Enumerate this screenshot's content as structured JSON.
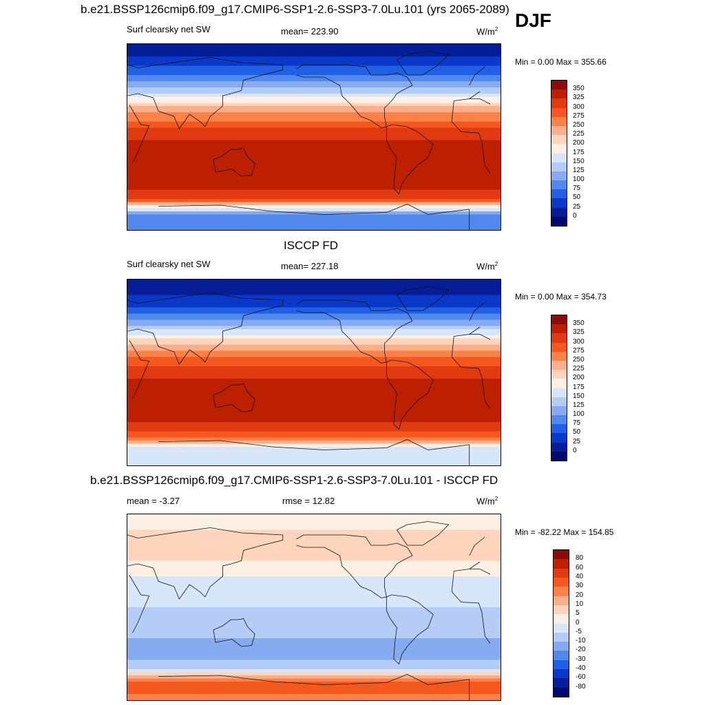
{
  "header": {
    "title": "b.e21.BSSP126cmip6.f09_g17.CMIP6-SSP1-2.6-SSP3-7.0Lu.101 (yrs 2065-2089)",
    "season": "DJF"
  },
  "panels": [
    {
      "variable": "Surf clearsky net SW",
      "stat": "mean= 223.90",
      "units": "W/m",
      "units_exp": "2",
      "minmax": "Min =   0.00 Max = 355.66"
    },
    {
      "title": "ISCCP FD",
      "variable": "Surf clearsky net SW",
      "stat": "mean= 227.18",
      "units": "W/m",
      "units_exp": "2",
      "minmax": "Min =   0.00 Max = 354.73"
    },
    {
      "title": "b.e21.BSSP126cmip6.f09_g17.CMIP6-SSP1-2.6-SSP3-7.0Lu.101 - ISCCP FD",
      "stat": "mean =  -3.27",
      "stat2": "rmse =  12.82",
      "units": "W/m",
      "units_exp": "2",
      "minmax": "Min = -82.22 Max = 154.85"
    }
  ],
  "chart_data": [
    {
      "type": "heatmap",
      "title": "b.e21.BSSP126cmip6.f09_g17.CMIP6-SSP1-2.6-SSP3-7.0Lu.101 (yrs 2065-2089)",
      "subtitle": "Surf clearsky net SW",
      "units": "W/m2",
      "mean": 223.9,
      "min": 0.0,
      "max": 355.66,
      "colorbar_levels": [
        "350",
        "325",
        "300",
        "275",
        "250",
        "225",
        "200",
        "175",
        "150",
        "125",
        "100",
        "75",
        "50",
        "25",
        "0"
      ],
      "colorbar_colors": [
        "#8c0c0c",
        "#bd2000",
        "#e03a10",
        "#f5581c",
        "#fa8248",
        "#fbae8a",
        "#fdd5bd",
        "#fdf0e4",
        "#d8e6fa",
        "#b5ccf6",
        "#86abf0",
        "#5088ec",
        "#1f60e4",
        "#0a38c8",
        "#051e98",
        "#000a6e"
      ],
      "zonal_profile_lat_from_north": [
        90,
        75,
        60,
        45,
        30,
        15,
        0,
        -15,
        -30,
        -45,
        -60,
        -75,
        -90
      ],
      "zonal_profile_values": [
        5,
        30,
        70,
        140,
        220,
        280,
        320,
        345,
        350,
        345,
        300,
        95,
        95
      ]
    },
    {
      "type": "heatmap",
      "title": "ISCCP FD",
      "subtitle": "Surf clearsky net SW",
      "units": "W/m2",
      "mean": 227.18,
      "min": 0.0,
      "max": 354.73,
      "colorbar_levels": [
        "350",
        "325",
        "300",
        "275",
        "250",
        "225",
        "200",
        "175",
        "150",
        "125",
        "100",
        "75",
        "50",
        "25",
        "0"
      ],
      "colorbar_colors": [
        "#8c0c0c",
        "#bd2000",
        "#e03a10",
        "#f5581c",
        "#fa8248",
        "#fbae8a",
        "#fdd5bd",
        "#fdf0e4",
        "#d8e6fa",
        "#b5ccf6",
        "#86abf0",
        "#5088ec",
        "#1f60e4",
        "#0a38c8",
        "#051e98",
        "#000a6e"
      ],
      "zonal_profile_lat_from_north": [
        90,
        75,
        60,
        45,
        30,
        15,
        0,
        -15,
        -30,
        -45,
        -60,
        -75,
        -90
      ],
      "zonal_profile_values": [
        5,
        25,
        60,
        130,
        215,
        275,
        315,
        335,
        335,
        330,
        290,
        160,
        160
      ]
    },
    {
      "type": "heatmap",
      "title": "b.e21.BSSP126cmip6.f09_g17.CMIP6-SSP1-2.6-SSP3-7.0Lu.101 - ISCCP FD",
      "units": "W/m2",
      "mean": -3.27,
      "rmse": 12.82,
      "min": -82.22,
      "max": 154.85,
      "colorbar_levels": [
        "80",
        "60",
        "40",
        "30",
        "20",
        "10",
        "5",
        "0",
        "-5",
        "-10",
        "-20",
        "-30",
        "-40",
        "-60",
        "-80"
      ],
      "colorbar_colors": [
        "#8c0c0c",
        "#bd2000",
        "#e03a10",
        "#f5581c",
        "#fa8248",
        "#fbae8a",
        "#fdd5bd",
        "#fdf0e4",
        "#d8e6fa",
        "#b5ccf6",
        "#86abf0",
        "#5088ec",
        "#1f60e4",
        "#0a38c8",
        "#051e98",
        "#000a6e"
      ],
      "zonal_profile_lat_from_north": [
        90,
        75,
        60,
        45,
        30,
        15,
        0,
        -15,
        -30,
        -45,
        -60,
        -75,
        -90
      ],
      "zonal_profile_values": [
        0,
        5,
        10,
        5,
        0,
        -5,
        -5,
        -8,
        -10,
        -12,
        -8,
        40,
        20
      ]
    }
  ]
}
